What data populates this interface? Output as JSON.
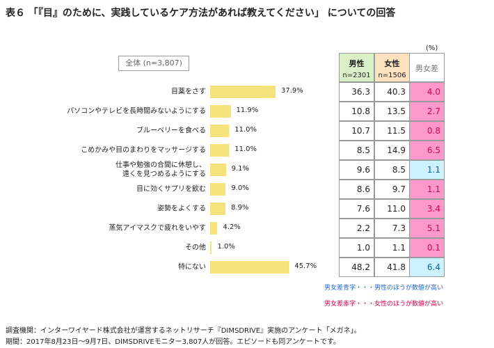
{
  "chart_data": {
    "type": "bar",
    "orientation": "horizontal",
    "title": "表６ 「『目』のために、実践しているケア方法があれば教えてください」 についての回答",
    "subtitle": "全体 (n=3,807)",
    "unit_note": "(%)",
    "categories": [
      "目薬をさす",
      "パソコンやテレビを長時間みないようにする",
      "ブルーベリーを食べる",
      "こめかみや目のまわりをマッサージする",
      "仕事や勉強の合間に休憩し、\n遠くを見つめるようにする",
      "目に効くサプリを飲む",
      "姿勢をよくする",
      "蒸気アイマスクで疲れをいやす",
      "その他",
      "特にない"
    ],
    "values": [
      37.9,
      11.9,
      11.0,
      11.0,
      9.1,
      9.0,
      8.9,
      4.2,
      1.0,
      45.7
    ],
    "value_labels": [
      "37.9%",
      "11.9%",
      "11.0%",
      "11.0%",
      "9.1%",
      "9.0%",
      "8.9%",
      "4.2%",
      "1.0%",
      "45.7%"
    ],
    "color": "#f5e27a",
    "xlim": [
      0,
      50
    ]
  },
  "table": {
    "columns": [
      {
        "name": "男性",
        "n": "n=2301",
        "bg": "#d8efc8"
      },
      {
        "name": "女性",
        "n": "n=1506",
        "bg": "#fde2bf"
      },
      {
        "name": "男女差",
        "bg": "#ffffff"
      }
    ],
    "rows": [
      [
        "36.3",
        "40.3",
        "4.0"
      ],
      [
        "10.8",
        "13.5",
        "2.7"
      ],
      [
        "10.7",
        "11.5",
        "0.8"
      ],
      [
        "8.5",
        "14.9",
        "6.5"
      ],
      [
        "9.6",
        "8.5",
        "1.1"
      ],
      [
        "8.6",
        "9.7",
        "1.1"
      ],
      [
        "7.6",
        "11.0",
        "3.4"
      ],
      [
        "2.2",
        "7.3",
        "5.1"
      ],
      [
        "1.0",
        "1.1",
        "0.1"
      ],
      [
        "48.2",
        "41.8",
        "6.4"
      ]
    ],
    "diff_colors": [
      "red",
      "red",
      "red",
      "red",
      "blue",
      "red",
      "red",
      "red",
      "red",
      "blue"
    ]
  },
  "legend": {
    "blue": "男女差青字・・・男性のほうが数値が高い",
    "red": "男女差赤字・・・女性のほうが数値が高い"
  },
  "footer": [
    "調査機関：インターワイヤード株式会社が運営するネットリサーチ『DIMSDRIVE』実施のアンケート「メガネ」。",
    "期間：2017年8月23日～9月7日、DIMSDRIVEモニター3,807人が回答。エピソードも同アンケートです。"
  ]
}
